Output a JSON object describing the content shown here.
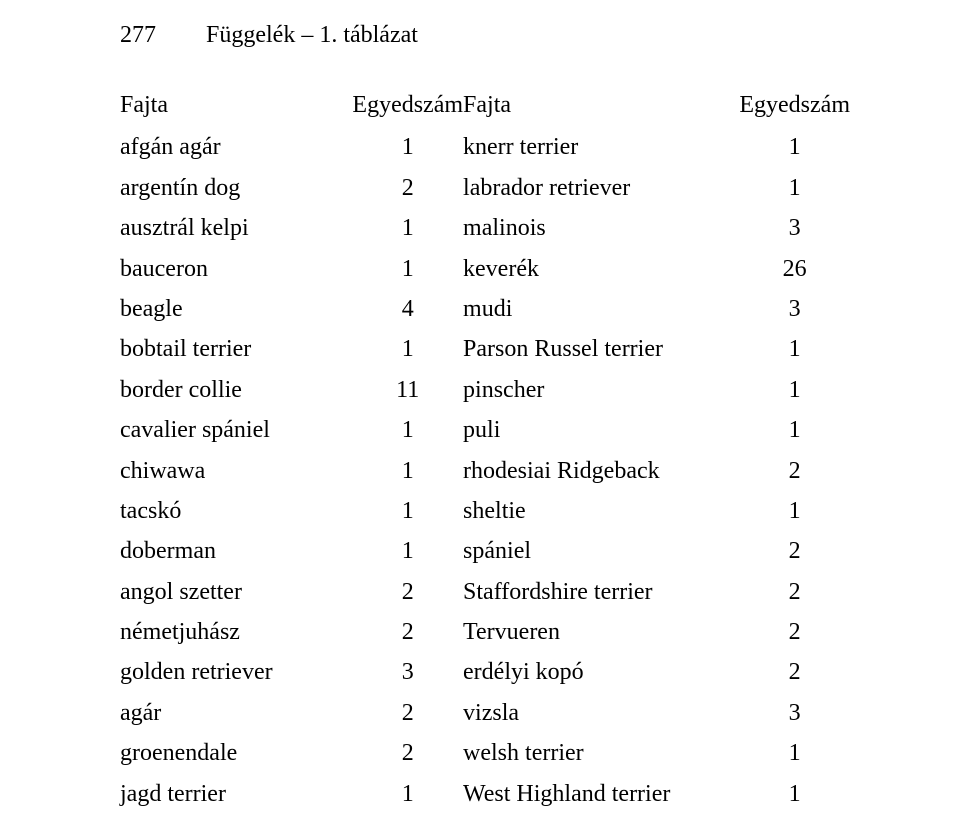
{
  "header": {
    "page_number": "277",
    "title": "Függelék – 1. táblázat"
  },
  "table": {
    "headers": {
      "left_name": "Fajta",
      "left_count": "Egyedszám",
      "right_name": "Fajta",
      "right_count": "Egyedszám"
    },
    "rows": [
      {
        "l": "afgán agár",
        "ln": "1",
        "r": "knerr terrier",
        "rn": "1"
      },
      {
        "l": "argentín dog",
        "ln": "2",
        "r": "labrador retriever",
        "rn": "1"
      },
      {
        "l": "ausztrál kelpi",
        "ln": "1",
        "r": "malinois",
        "rn": "3"
      },
      {
        "l": "bauceron",
        "ln": "1",
        "r": "keverék",
        "rn": "26"
      },
      {
        "l": "beagle",
        "ln": "4",
        "r": "mudi",
        "rn": "3"
      },
      {
        "l": "bobtail terrier",
        "ln": "1",
        "r": "Parson Russel terrier",
        "rn": "1"
      },
      {
        "l": "border collie",
        "ln": "11",
        "r": "pinscher",
        "rn": "1"
      },
      {
        "l": "cavalier spániel",
        "ln": "1",
        "r": "puli",
        "rn": "1"
      },
      {
        "l": "chiwawa",
        "ln": "1",
        "r": "rhodesiai Ridgeback",
        "rn": "2"
      },
      {
        "l": "tacskó",
        "ln": "1",
        "r": "sheltie",
        "rn": "1"
      },
      {
        "l": "doberman",
        "ln": "1",
        "r": "spániel",
        "rn": "2"
      },
      {
        "l": "angol szetter",
        "ln": "2",
        "r": "Staffordshire terrier",
        "rn": "2"
      },
      {
        "l": "németjuhász",
        "ln": "2",
        "r": "Tervueren",
        "rn": "2"
      },
      {
        "l": "golden retriever",
        "ln": "3",
        "r": "erdélyi kopó",
        "rn": "2"
      },
      {
        "l": "agár",
        "ln": "2",
        "r": "vizsla",
        "rn": "3"
      },
      {
        "l": "groenendale",
        "ln": "2",
        "r": "welsh terrier",
        "rn": "1"
      },
      {
        "l": "jagd terrier",
        "ln": "1",
        "r": "West Highland terrier",
        "rn": "1"
      }
    ]
  }
}
